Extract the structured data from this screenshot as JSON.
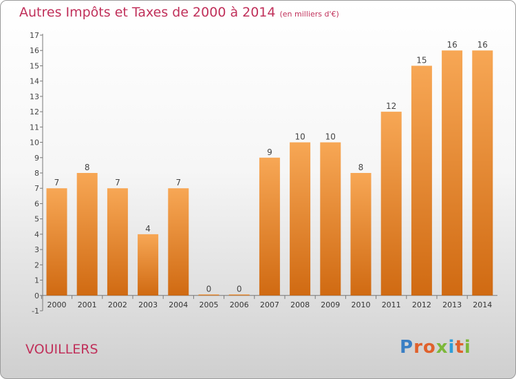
{
  "header": {
    "title": "Autres Impôts et Taxes de 2000 à 2014",
    "unit": "(en milliers d'€)"
  },
  "footer": {
    "commune": "VOUILLERS",
    "brand_letters": [
      "P",
      "r",
      "o",
      "x",
      "i",
      "t",
      "i"
    ]
  },
  "colors": {
    "title": "#c0305a",
    "bar_top": "#f7a755",
    "bar_bottom": "#d06a12",
    "brand": [
      "#3a7fc4",
      "#e0612c",
      "#e0612c",
      "#7cb83a",
      "#2f9dd8",
      "#e0612c",
      "#7cb83a"
    ]
  },
  "chart_data": {
    "type": "bar",
    "title": "Autres Impôts et Taxes de 2000 à 2014",
    "subtitle": "(en milliers d'€)",
    "categories": [
      "2000",
      "2001",
      "2002",
      "2003",
      "2004",
      "2005",
      "2006",
      "2007",
      "2008",
      "2009",
      "2010",
      "2011",
      "2012",
      "2013",
      "2014"
    ],
    "values": [
      7,
      8,
      7,
      4,
      7,
      0,
      0,
      9,
      10,
      10,
      8,
      12,
      15,
      16,
      16
    ],
    "ylim": [
      -1,
      17
    ],
    "yticks": [
      -1,
      0,
      1,
      2,
      3,
      4,
      5,
      6,
      7,
      8,
      9,
      10,
      11,
      12,
      13,
      14,
      15,
      16,
      17
    ],
    "grid": false,
    "legend": "none",
    "data_labels": true
  }
}
